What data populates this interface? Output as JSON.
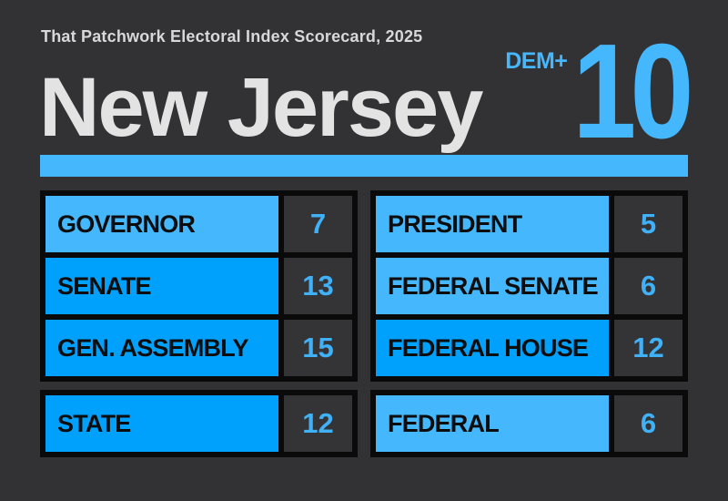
{
  "theme": {
    "background": "#323134",
    "border_black": "#0a0a0a",
    "accent_light": "#45b7fc",
    "accent_strong": "#00a1fc",
    "value_text": "#41b1f7",
    "value_cell_bg": "#343336",
    "kicker_color": "#d8d8d8",
    "heading_color": "#e3e3e3",
    "label_text": "#0d0d0d"
  },
  "header": {
    "kicker": "That Patchwork Electoral Index Scorecard, 2025",
    "state": "New Jersey",
    "lean_prefix": "DEM+",
    "lean_value": "10"
  },
  "chart_data": {
    "type": "table",
    "title": "That Patchwork Electoral Index Scorecard, 2025",
    "subject": "New Jersey",
    "overall_lean_party": "DEM+",
    "overall_lean_value": 10,
    "columns": [
      {
        "rows": [
          {
            "label": "GOVERNOR",
            "value": 7,
            "emphasis": "light"
          },
          {
            "label": "SENATE",
            "value": 13,
            "emphasis": "strong"
          },
          {
            "label": "GEN. ASSEMBLY",
            "value": 15,
            "emphasis": "strong"
          }
        ],
        "summary": {
          "label": "STATE",
          "value": 12,
          "emphasis": "strong"
        }
      },
      {
        "rows": [
          {
            "label": "PRESIDENT",
            "value": 5,
            "emphasis": "light"
          },
          {
            "label": "FEDERAL SENATE",
            "value": 6,
            "emphasis": "light"
          },
          {
            "label": "FEDERAL HOUSE",
            "value": 12,
            "emphasis": "strong"
          }
        ],
        "summary": {
          "label": "FEDERAL",
          "value": 6,
          "emphasis": "light"
        }
      }
    ]
  }
}
